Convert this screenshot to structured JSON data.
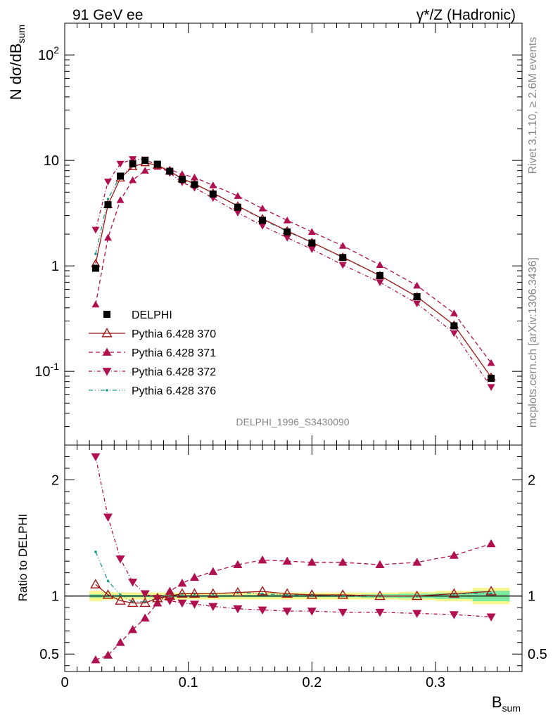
{
  "header": {
    "left": "91 GeV ee",
    "right": "γ*/Z (Hadronic)"
  },
  "side_text": {
    "rivet": "Rivet 3.1.10, ≥ 2.6M events",
    "source": "mcplots.cern.ch [arXiv:1306.3436]"
  },
  "analysis_label": "DELPHI_1996_S3430090",
  "colors": {
    "data": "#000000",
    "p370": "#a01818",
    "p371": "#b0104f",
    "p372": "#b0104f",
    "p376": "#1a9a8a",
    "band_outer": "#f7f78c",
    "band_inner": "#7de8a0"
  },
  "chart_data": [
    {
      "type": "line",
      "panel": "main",
      "ylabel": "N dσ/dB_sum",
      "yscale": "log",
      "ylim": [
        0.02,
        200
      ],
      "xlim": [
        0,
        0.37
      ],
      "y_tick_labels": [
        "10^-1",
        "1",
        "10",
        "10^2"
      ],
      "legend_placement": "lower-left",
      "x": [
        0.025,
        0.035,
        0.045,
        0.055,
        0.065,
        0.075,
        0.085,
        0.095,
        0.105,
        0.12,
        0.14,
        0.16,
        0.18,
        0.2,
        0.225,
        0.255,
        0.285,
        0.315,
        0.345
      ],
      "series": [
        {
          "name": "DELPHI",
          "marker": "square",
          "values": [
            0.95,
            3.8,
            7.1,
            9.3,
            10.0,
            9.2,
            7.9,
            6.6,
            5.9,
            4.8,
            3.6,
            2.7,
            2.1,
            1.65,
            1.2,
            0.81,
            0.51,
            0.27,
            0.086
          ]
        },
        {
          "name": "Pythia 6.428 370",
          "marker": "open-triangle",
          "values": [
            1.05,
            3.8,
            6.8,
            8.7,
            9.5,
            9.0,
            7.9,
            6.7,
            6.0,
            4.9,
            3.7,
            2.8,
            2.15,
            1.67,
            1.21,
            0.81,
            0.51,
            0.275,
            0.088
          ]
        },
        {
          "name": "Pythia 6.428 371",
          "marker": "triangle-up",
          "values": [
            0.43,
            1.85,
            4.2,
            6.5,
            8.0,
            8.7,
            8.2,
            7.4,
            6.9,
            5.8,
            4.6,
            3.5,
            2.7,
            2.1,
            1.55,
            1.02,
            0.65,
            0.355,
            0.12
          ]
        },
        {
          "name": "Pythia 6.428 372",
          "marker": "triangle-down",
          "values": [
            2.2,
            6.3,
            9.3,
            10.3,
            10.2,
            9.0,
            7.6,
            6.2,
            5.5,
            4.4,
            3.2,
            2.4,
            1.85,
            1.44,
            1.02,
            0.7,
            0.44,
            0.23,
            0.071
          ]
        },
        {
          "name": "Pythia 6.428 376",
          "marker": "dot",
          "values": [
            1.3,
            4.3,
            7.2,
            8.8,
            9.5,
            9.0,
            7.9,
            6.7,
            6.0,
            4.9,
            3.7,
            2.75,
            2.12,
            1.66,
            1.2,
            0.81,
            0.51,
            0.275,
            0.088
          ]
        }
      ]
    },
    {
      "type": "line",
      "panel": "ratio",
      "xlabel": "B_sum",
      "ylabel": "Ratio to DELPHI",
      "ylim": [
        0.35,
        2.3
      ],
      "xlim": [
        0,
        0.37
      ],
      "x_tick_labels": [
        "0",
        "0.1",
        "0.2",
        "0.3"
      ],
      "y_tick_labels": [
        "0.5",
        "1",
        "2"
      ],
      "x": [
        0.025,
        0.035,
        0.045,
        0.055,
        0.065,
        0.075,
        0.085,
        0.095,
        0.105,
        0.12,
        0.14,
        0.16,
        0.18,
        0.2,
        0.225,
        0.255,
        0.285,
        0.315,
        0.345
      ],
      "series": [
        {
          "name": "Pythia 6.428 370",
          "marker": "open-triangle",
          "values": [
            1.1,
            1.01,
            0.96,
            0.94,
            0.94,
            0.98,
            1.0,
            1.02,
            1.02,
            1.02,
            1.03,
            1.04,
            1.02,
            1.01,
            1.01,
            1.0,
            1.0,
            1.02,
            1.04
          ]
        },
        {
          "name": "Pythia 6.428 371",
          "marker": "triangle-up",
          "values": [
            0.45,
            0.49,
            0.6,
            0.71,
            0.81,
            0.94,
            1.04,
            1.11,
            1.16,
            1.21,
            1.27,
            1.31,
            1.3,
            1.29,
            1.29,
            1.27,
            1.29,
            1.35,
            1.45
          ]
        },
        {
          "name": "Pythia 6.428 372",
          "marker": "triangle-down",
          "values": [
            2.2,
            1.68,
            1.32,
            1.12,
            1.02,
            0.98,
            0.96,
            0.94,
            0.93,
            0.91,
            0.89,
            0.88,
            0.87,
            0.87,
            0.86,
            0.86,
            0.85,
            0.84,
            0.82
          ]
        },
        {
          "name": "Pythia 6.428 376",
          "marker": "dot",
          "values": [
            1.38,
            1.13,
            1.01,
            0.95,
            0.95,
            0.98,
            1.0,
            1.02,
            1.02,
            1.02,
            1.03,
            1.02,
            1.01,
            1.01,
            1.0,
            1.0,
            1.0,
            1.02,
            1.02
          ]
        }
      ],
      "uncertainty_band": {
        "x_edges": [
          0.02,
          0.03,
          0.04,
          0.05,
          0.06,
          0.07,
          0.08,
          0.09,
          0.1,
          0.11,
          0.13,
          0.15,
          0.17,
          0.19,
          0.21,
          0.24,
          0.27,
          0.3,
          0.33,
          0.36
        ],
        "outer": [
          0.045,
          0.035,
          0.03,
          0.03,
          0.03,
          0.03,
          0.03,
          0.03,
          0.03,
          0.03,
          0.03,
          0.03,
          0.03,
          0.03,
          0.03,
          0.03,
          0.035,
          0.045,
          0.07
        ],
        "inner": [
          0.015,
          0.012,
          0.01,
          0.01,
          0.01,
          0.01,
          0.01,
          0.01,
          0.01,
          0.01,
          0.01,
          0.01,
          0.01,
          0.01,
          0.01,
          0.015,
          0.02,
          0.025,
          0.045
        ]
      }
    }
  ]
}
